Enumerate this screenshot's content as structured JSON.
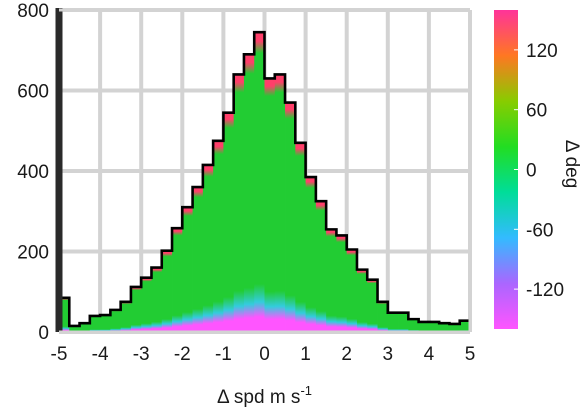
{
  "chart_data": {
    "type": "bar",
    "subtype": "stacked-histogram-colored-by-value",
    "xlabel": "Δ spd m s⁻¹",
    "xlabel_parts": {
      "base": "Δ spd m s",
      "sup": "-1"
    },
    "ylabel": "",
    "xlim": [
      -5,
      5
    ],
    "ylim": [
      0,
      800
    ],
    "xticks": [
      -5,
      -4,
      -3,
      -2,
      -1,
      0,
      1,
      2,
      3,
      4,
      5
    ],
    "xtick_labels": [
      "-5",
      "-4",
      "-3",
      "-2",
      "-1",
      "0",
      "1",
      "2",
      "3",
      "4",
      "5"
    ],
    "yticks": [
      0,
      200,
      400,
      600,
      800
    ],
    "ytick_labels": [
      "0",
      "200",
      "400",
      "600",
      "800"
    ],
    "grid": true,
    "bin_width": 0.25,
    "bin_left_edges": [
      -5.0,
      -4.75,
      -4.5,
      -4.25,
      -4.0,
      -3.75,
      -3.5,
      -3.25,
      -3.0,
      -2.75,
      -2.5,
      -2.25,
      -2.0,
      -1.75,
      -1.5,
      -1.25,
      -1.0,
      -0.75,
      -0.5,
      -0.25,
      0.0,
      0.25,
      0.5,
      0.75,
      1.0,
      1.25,
      1.5,
      1.75,
      2.0,
      2.25,
      2.5,
      2.75,
      3.0,
      3.25,
      3.5,
      3.75,
      4.0,
      4.25,
      4.5,
      4.75
    ],
    "counts": [
      85,
      15,
      22,
      40,
      42,
      55,
      75,
      112,
      135,
      160,
      202,
      258,
      310,
      360,
      415,
      475,
      545,
      640,
      690,
      745,
      630,
      640,
      570,
      470,
      385,
      325,
      255,
      240,
      205,
      155,
      130,
      75,
      48,
      48,
      32,
      25,
      25,
      22,
      20,
      28
    ],
    "colorbar": {
      "label": "Δ deg",
      "ticks": [
        -120,
        -60,
        0,
        60,
        120
      ],
      "tick_labels": [
        "-120",
        "-60",
        "0",
        "60",
        "120"
      ],
      "range": [
        -160,
        160
      ],
      "colors": [
        "#ff55ff",
        "#aa66ff",
        "#33bbff",
        "#00dd99",
        "#22dd22",
        "#88cc00",
        "#ff7722",
        "#ff3399"
      ]
    },
    "colors": {
      "outline": "#000000",
      "grid": "#d3d3d3",
      "frame": "#d3d3d3",
      "bar_main": "#22cc33",
      "bar_top": "#ff3f6a",
      "bar_cyan": "#33ccdd",
      "bar_magenta": "#ff55ff",
      "left_spike": "#2a2a2a"
    }
  }
}
